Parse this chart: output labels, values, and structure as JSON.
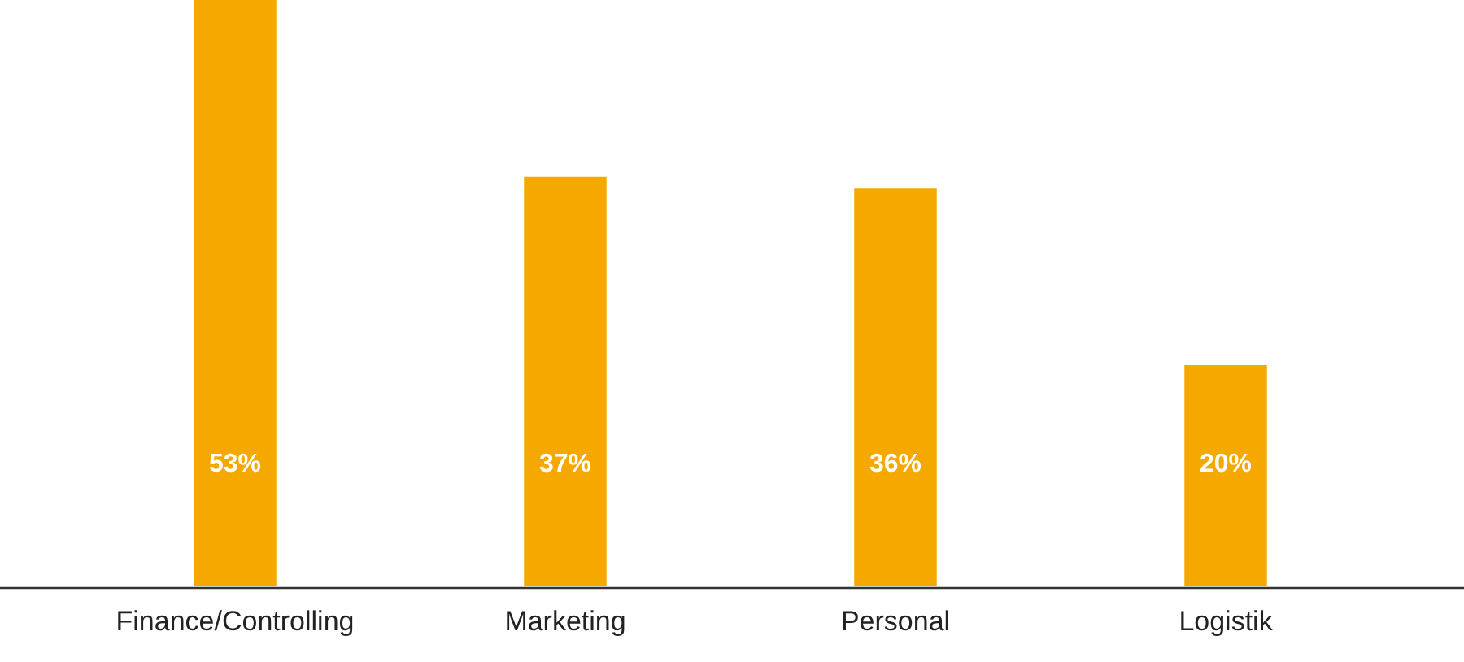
{
  "chart_data": {
    "type": "bar",
    "categories": [
      "Finance/Controlling",
      "Marketing",
      "Personal",
      "Logistik"
    ],
    "values": [
      53,
      37,
      36,
      20
    ],
    "color": "#f5a800",
    "value_labels": [
      "53%",
      "37%",
      "36%",
      "20%"
    ],
    "ylim": [
      0,
      53
    ],
    "tick_labels": "x"
  }
}
